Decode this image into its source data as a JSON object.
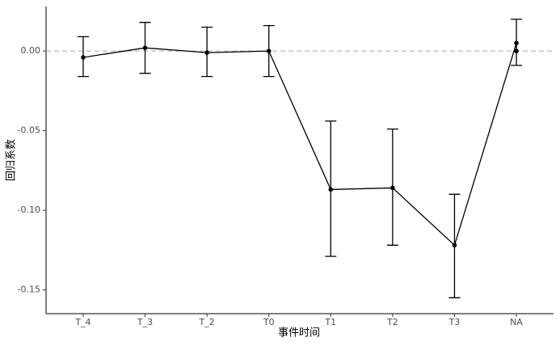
{
  "chart_data": {
    "type": "errorbar-line",
    "x_label": "事件时间",
    "y_label": "回归系数",
    "categories": [
      "T_4",
      "T_3",
      "T_2",
      "T0",
      "T1",
      "T2",
      "T3",
      "NA"
    ],
    "series": [
      {
        "color": "#000000",
        "values": [
          -0.004,
          0.002,
          -0.001,
          0.0,
          -0.087,
          -0.086,
          -0.122,
          0.005
        ],
        "lower": [
          -0.016,
          -0.014,
          -0.016,
          -0.016,
          -0.129,
          -0.122,
          -0.155,
          -0.009
        ],
        "upper": [
          0.009,
          0.018,
          0.015,
          0.016,
          -0.044,
          -0.049,
          -0.09,
          0.02
        ]
      },
      {
        "color": "#000000",
        "values": [
          null,
          null,
          null,
          null,
          null,
          null,
          null,
          0.0
        ]
      }
    ],
    "hline": 0,
    "hline_color": "#aaaaaa",
    "ylim": [
      -0.165,
      0.028
    ],
    "yticks": [
      {
        "value": -0.15,
        "label": "-0.15"
      },
      {
        "value": -0.1,
        "label": "-0.10"
      },
      {
        "value": -0.05,
        "label": "-0.05"
      },
      {
        "value": 0,
        "label": "0.00"
      }
    ]
  }
}
